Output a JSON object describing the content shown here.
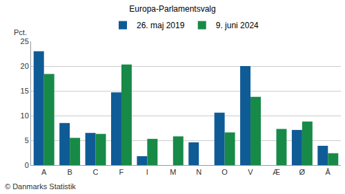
{
  "chart_data": {
    "type": "bar",
    "title": "Europa-Parlamentsvalg",
    "ylabel": "Pct.",
    "source": "© Danmarks Statistik",
    "categories": [
      "A",
      "B",
      "C",
      "F",
      "I",
      "M",
      "N",
      "O",
      "V",
      "Æ",
      "Ø",
      "Å"
    ],
    "series": [
      {
        "name": "26. maj 2019",
        "color": "#0f5b96",
        "values": [
          23.0,
          8.5,
          6.5,
          14.7,
          1.8,
          null,
          4.6,
          10.6,
          20.0,
          null,
          7.1,
          3.9
        ]
      },
      {
        "name": "9. juni 2024",
        "color": "#178a47",
        "values": [
          18.4,
          5.5,
          6.3,
          20.3,
          5.3,
          5.8,
          null,
          6.6,
          13.8,
          7.3,
          8.8,
          2.4
        ]
      }
    ],
    "ylim": [
      0,
      25
    ],
    "yticks": [
      0,
      5,
      10,
      15,
      20,
      25
    ],
    "grid": true,
    "legend": "top"
  }
}
